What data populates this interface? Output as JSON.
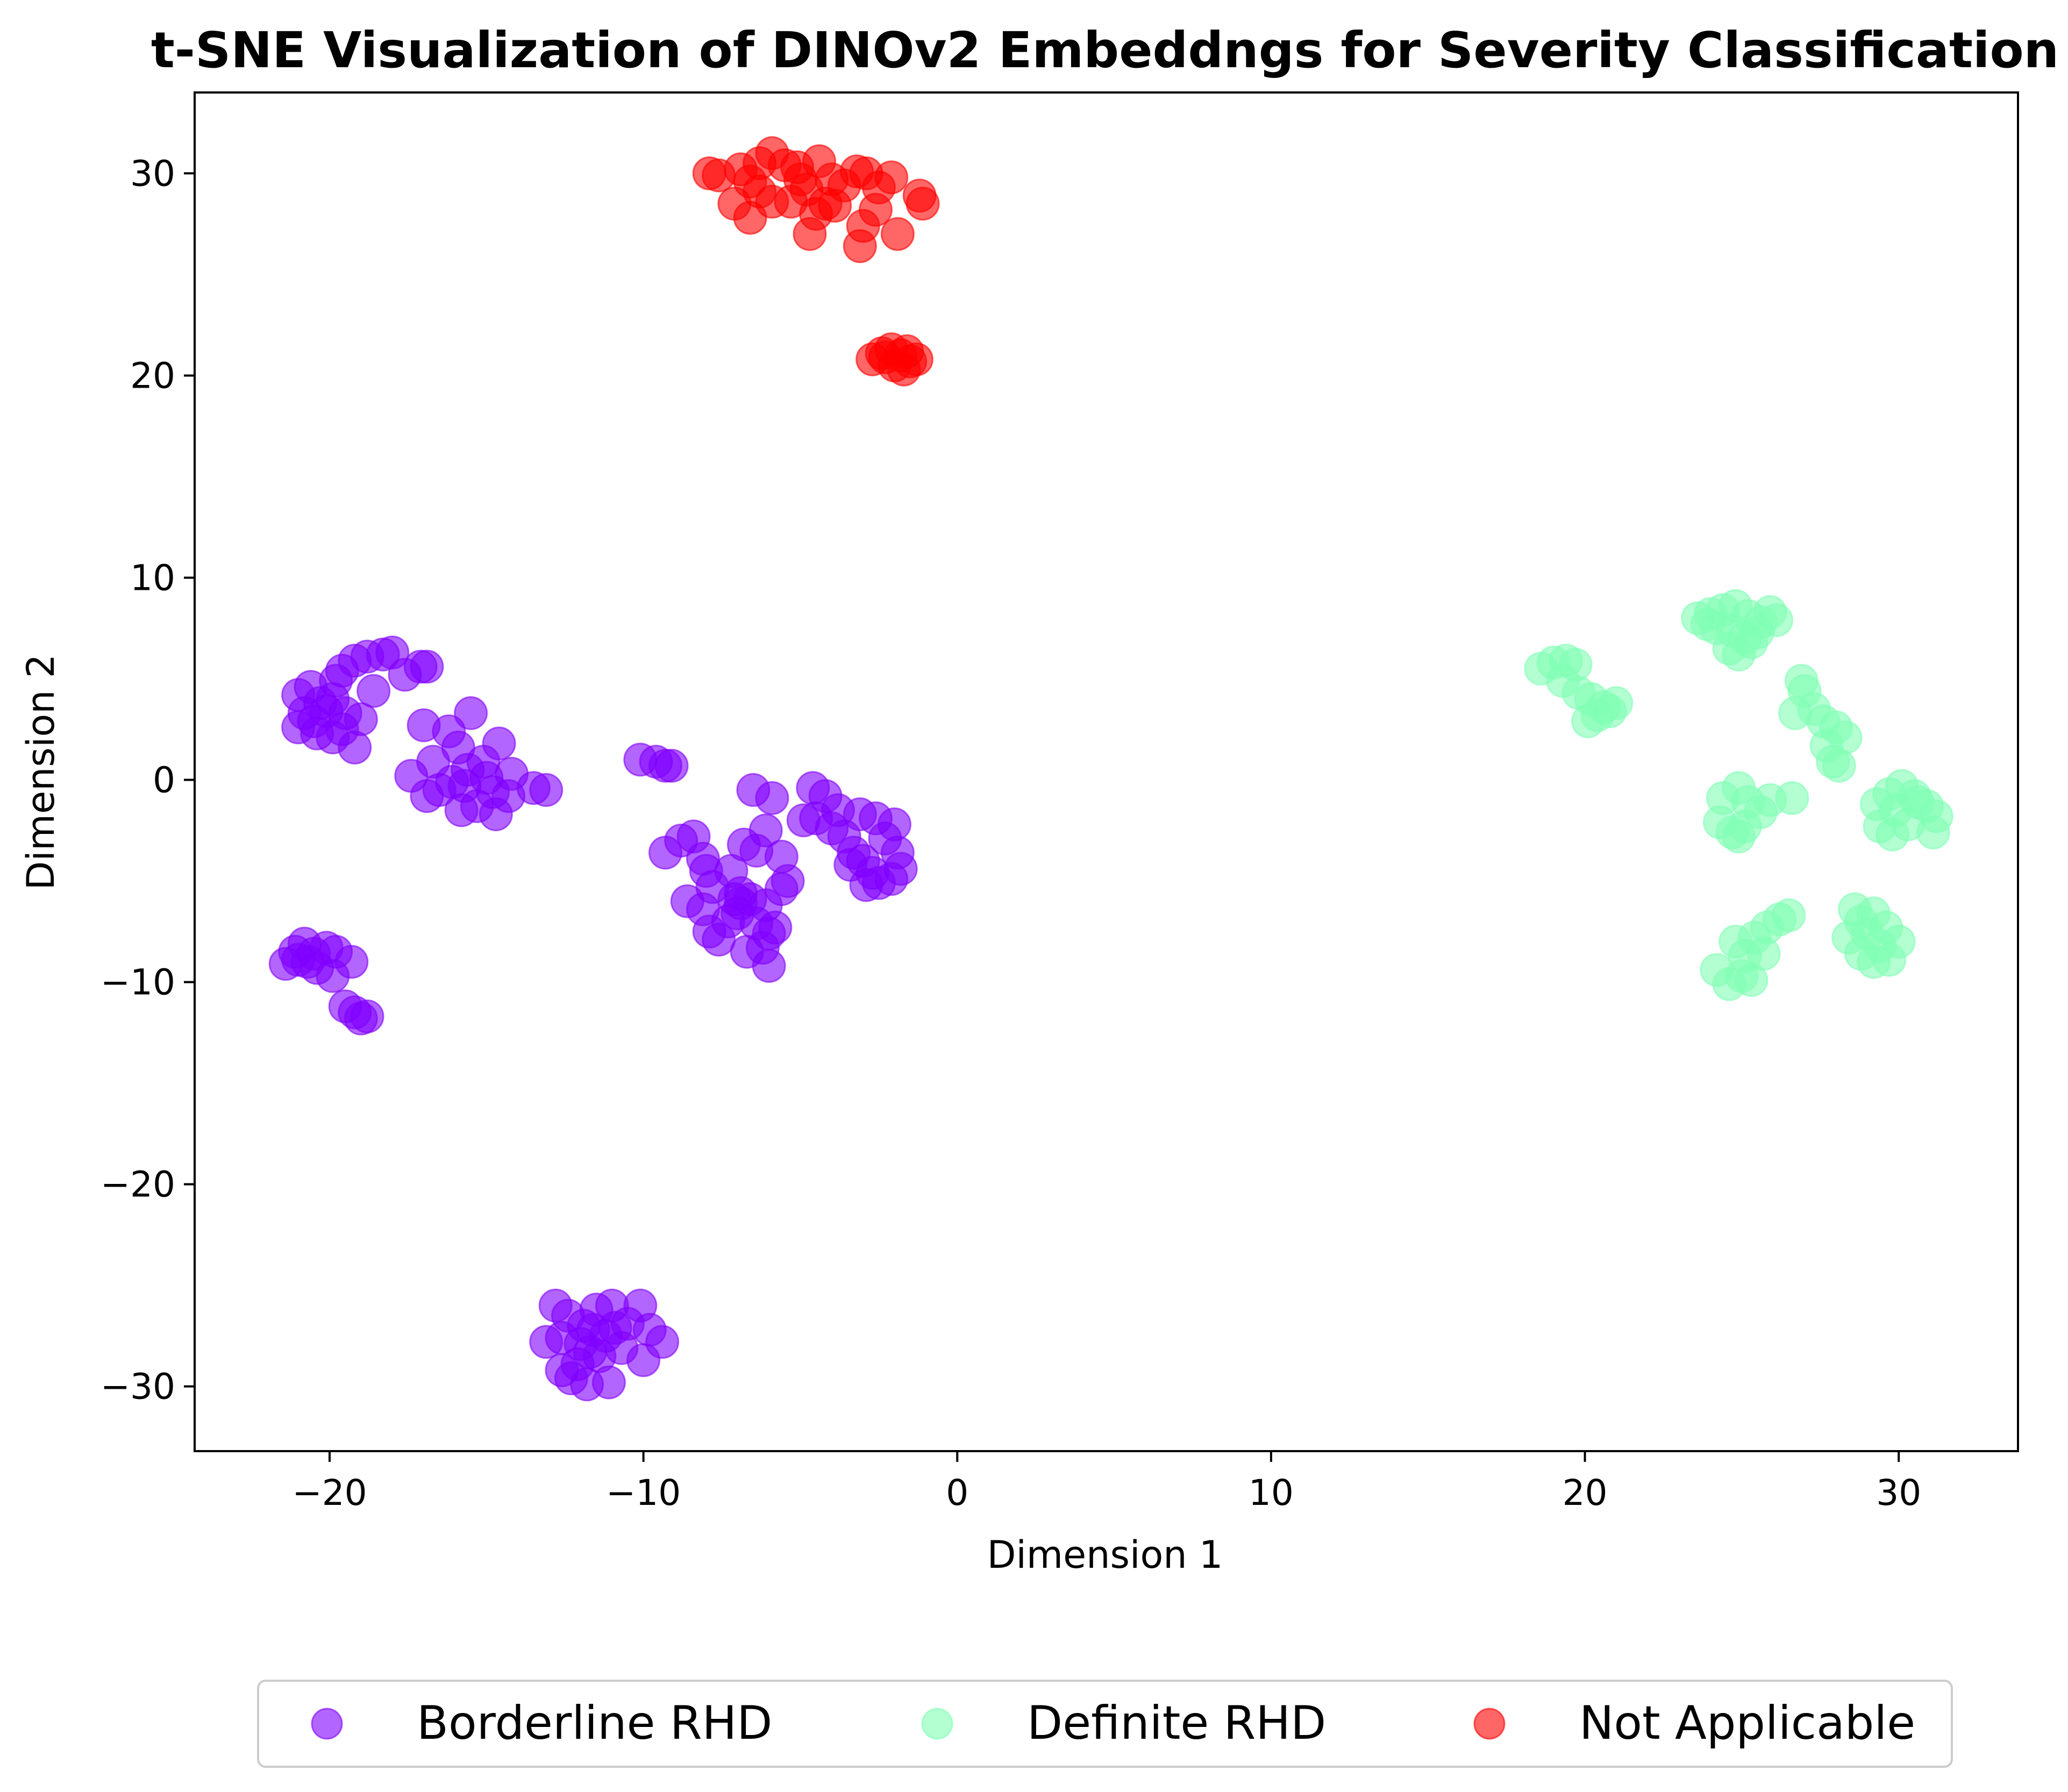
{
  "chart_data": {
    "type": "scatter",
    "title": "t-SNE Visualization of DINOv2 Embeddngs for Severity Classification",
    "xlabel": "Dimension 1",
    "ylabel": "Dimension 2",
    "xlim": [
      -24.3,
      33.8
    ],
    "ylim": [
      -33.2,
      34.0
    ],
    "xticks": [
      -20,
      -10,
      0,
      10,
      20,
      30
    ],
    "yticks": [
      -30,
      -20,
      -10,
      0,
      10,
      20,
      30
    ],
    "xtick_labels": [
      "−20",
      "−10",
      "0",
      "10",
      "20",
      "30"
    ],
    "ytick_labels": [
      "−30",
      "−20",
      "−10",
      "0",
      "10",
      "20",
      "30"
    ],
    "grid": false,
    "legend_position": "bottom-center",
    "series": [
      {
        "name": "Borderline RHD",
        "color": "#8000ff",
        "points": [
          [
            -21.0,
            4.2
          ],
          [
            -20.6,
            4.6
          ],
          [
            -20.3,
            3.8
          ],
          [
            -20.8,
            3.3
          ],
          [
            -21.0,
            2.6
          ],
          [
            -20.5,
            2.9
          ],
          [
            -20.1,
            3.4
          ],
          [
            -19.8,
            4.9
          ],
          [
            -19.6,
            5.4
          ],
          [
            -19.2,
            5.9
          ],
          [
            -18.8,
            6.1
          ],
          [
            -18.3,
            6.2
          ],
          [
            -18.0,
            6.3
          ],
          [
            -17.6,
            5.2
          ],
          [
            -17.1,
            5.6
          ],
          [
            -16.9,
            5.6
          ],
          [
            -18.6,
            4.4
          ],
          [
            -19.9,
            4.0
          ],
          [
            -19.5,
            3.3
          ],
          [
            -19.2,
            1.6
          ],
          [
            -19.9,
            2.1
          ],
          [
            -19.6,
            2.5
          ],
          [
            -19.0,
            3.0
          ],
          [
            -20.4,
            2.3
          ],
          [
            -17.0,
            2.7
          ],
          [
            -16.2,
            2.4
          ],
          [
            -15.5,
            3.3
          ],
          [
            -15.9,
            1.6
          ],
          [
            -16.7,
            0.9
          ],
          [
            -17.4,
            0.2
          ],
          [
            -16.9,
            -0.8
          ],
          [
            -16.5,
            -0.5
          ],
          [
            -16.1,
            -0.1
          ],
          [
            -15.6,
            0.5
          ],
          [
            -15.1,
            0.9
          ],
          [
            -14.6,
            1.8
          ],
          [
            -14.2,
            0.3
          ],
          [
            -14.8,
            -0.6
          ],
          [
            -15.3,
            -1.3
          ],
          [
            -15.8,
            -1.5
          ],
          [
            -14.7,
            -1.7
          ],
          [
            -14.3,
            -0.8
          ],
          [
            -13.5,
            -0.4
          ],
          [
            -13.1,
            -0.5
          ],
          [
            -15.0,
            0.1
          ],
          [
            -15.7,
            -0.3
          ],
          [
            -21.4,
            -9.1
          ],
          [
            -21.1,
            -8.5
          ],
          [
            -20.8,
            -8.1
          ],
          [
            -20.5,
            -8.6
          ],
          [
            -20.1,
            -8.3
          ],
          [
            -19.8,
            -8.5
          ],
          [
            -20.4,
            -9.3
          ],
          [
            -19.9,
            -9.7
          ],
          [
            -19.3,
            -9.0
          ],
          [
            -19.5,
            -11.2
          ],
          [
            -19.2,
            -11.5
          ],
          [
            -19.0,
            -11.8
          ],
          [
            -18.8,
            -11.7
          ],
          [
            -21.0,
            -8.9
          ],
          [
            -20.7,
            -9.0
          ],
          [
            -10.1,
            1.0
          ],
          [
            -9.6,
            0.9
          ],
          [
            -9.3,
            0.7
          ],
          [
            -9.1,
            0.7
          ],
          [
            -9.3,
            -3.6
          ],
          [
            -8.8,
            -3.0
          ],
          [
            -8.4,
            -2.8
          ],
          [
            -8.1,
            -3.9
          ],
          [
            -8.0,
            -4.5
          ],
          [
            -7.8,
            -5.3
          ],
          [
            -8.6,
            -6.0
          ],
          [
            -8.1,
            -6.4
          ],
          [
            -7.9,
            -7.5
          ],
          [
            -7.6,
            -7.9
          ],
          [
            -7.3,
            -7.0
          ],
          [
            -7.0,
            -6.6
          ],
          [
            -6.9,
            -5.6
          ],
          [
            -6.6,
            -5.9
          ],
          [
            -7.2,
            -4.5
          ],
          [
            -6.8,
            -3.2
          ],
          [
            -6.4,
            -3.5
          ],
          [
            -6.1,
            -2.5
          ],
          [
            -5.6,
            -3.8
          ],
          [
            -5.4,
            -5.0
          ],
          [
            -5.6,
            -5.4
          ],
          [
            -6.1,
            -6.2
          ],
          [
            -6.4,
            -7.1
          ],
          [
            -6.7,
            -8.5
          ],
          [
            -6.2,
            -8.3
          ],
          [
            -6.0,
            -9.2
          ],
          [
            -5.8,
            -7.3
          ],
          [
            -6.0,
            -7.6
          ],
          [
            -5.9,
            -0.9
          ],
          [
            -6.5,
            -0.5
          ],
          [
            -7.1,
            -5.9
          ],
          [
            -6.9,
            -6.1
          ],
          [
            -4.6,
            -0.4
          ],
          [
            -4.2,
            -0.8
          ],
          [
            -3.8,
            -1.5
          ],
          [
            -4.5,
            -1.9
          ],
          [
            -4.0,
            -2.4
          ],
          [
            -4.9,
            -2.0
          ],
          [
            -3.6,
            -2.8
          ],
          [
            -3.3,
            -3.6
          ],
          [
            -3.0,
            -4.0
          ],
          [
            -2.7,
            -4.6
          ],
          [
            -2.5,
            -5.1
          ],
          [
            -2.9,
            -5.2
          ],
          [
            -2.1,
            -4.9
          ],
          [
            -1.8,
            -4.4
          ],
          [
            -1.9,
            -3.6
          ],
          [
            -2.3,
            -2.9
          ],
          [
            -3.1,
            -1.7
          ],
          [
            -2.6,
            -1.9
          ],
          [
            -2.0,
            -2.2
          ],
          [
            -3.4,
            -4.2
          ],
          [
            -12.8,
            -26.0
          ],
          [
            -12.4,
            -26.5
          ],
          [
            -11.9,
            -27.0
          ],
          [
            -11.5,
            -26.2
          ],
          [
            -11.0,
            -26.0
          ],
          [
            -10.5,
            -26.9
          ],
          [
            -10.1,
            -26.0
          ],
          [
            -9.8,
            -27.2
          ],
          [
            -9.4,
            -27.8
          ],
          [
            -10.0,
            -28.7
          ],
          [
            -10.7,
            -28.1
          ],
          [
            -11.2,
            -27.5
          ],
          [
            -11.7,
            -28.3
          ],
          [
            -12.1,
            -28.9
          ],
          [
            -12.6,
            -29.2
          ],
          [
            -13.1,
            -27.8
          ],
          [
            -12.3,
            -29.6
          ],
          [
            -11.8,
            -29.9
          ],
          [
            -11.1,
            -29.8
          ],
          [
            -11.4,
            -28.5
          ],
          [
            -12.0,
            -27.9
          ],
          [
            -10.9,
            -27.1
          ],
          [
            -12.6,
            -27.6
          ],
          [
            -11.6,
            -27.2
          ]
        ]
      },
      {
        "name": "Definite RHD",
        "color": "#80ffb4",
        "points": [
          [
            23.6,
            8.0
          ],
          [
            24.0,
            8.2
          ],
          [
            24.4,
            8.4
          ],
          [
            24.8,
            8.6
          ],
          [
            25.2,
            8.1
          ],
          [
            25.6,
            7.8
          ],
          [
            25.9,
            8.3
          ],
          [
            26.1,
            7.9
          ],
          [
            24.2,
            7.5
          ],
          [
            24.7,
            7.4
          ],
          [
            25.1,
            7.0
          ],
          [
            25.5,
            7.3
          ],
          [
            24.9,
            6.2
          ],
          [
            24.6,
            6.5
          ],
          [
            25.3,
            6.8
          ],
          [
            23.9,
            7.7
          ],
          [
            18.6,
            5.5
          ],
          [
            19.0,
            5.8
          ],
          [
            19.4,
            5.9
          ],
          [
            19.7,
            5.7
          ],
          [
            19.3,
            4.9
          ],
          [
            19.8,
            4.3
          ],
          [
            20.2,
            4.0
          ],
          [
            20.6,
            3.6
          ],
          [
            21.0,
            3.8
          ],
          [
            20.4,
            3.2
          ],
          [
            20.1,
            2.9
          ],
          [
            20.8,
            3.4
          ],
          [
            26.9,
            4.9
          ],
          [
            27.0,
            4.4
          ],
          [
            27.3,
            3.5
          ],
          [
            26.7,
            3.3
          ],
          [
            27.6,
            2.9
          ],
          [
            28.0,
            2.6
          ],
          [
            28.3,
            2.1
          ],
          [
            27.7,
            1.7
          ],
          [
            27.9,
            0.9
          ],
          [
            28.1,
            0.7
          ],
          [
            24.4,
            -0.9
          ],
          [
            24.9,
            -0.4
          ],
          [
            25.2,
            -1.1
          ],
          [
            25.6,
            -1.6
          ],
          [
            25.1,
            -2.3
          ],
          [
            24.7,
            -2.6
          ],
          [
            24.3,
            -2.1
          ],
          [
            25.9,
            -1.0
          ],
          [
            26.6,
            -0.9
          ],
          [
            24.9,
            -2.8
          ],
          [
            29.3,
            -1.2
          ],
          [
            29.7,
            -0.7
          ],
          [
            30.1,
            -0.3
          ],
          [
            30.5,
            -0.8
          ],
          [
            30.9,
            -1.3
          ],
          [
            31.2,
            -1.8
          ],
          [
            31.1,
            -2.6
          ],
          [
            30.3,
            -2.2
          ],
          [
            29.8,
            -2.7
          ],
          [
            29.4,
            -2.3
          ],
          [
            29.9,
            -1.5
          ],
          [
            30.6,
            -1.1
          ],
          [
            24.2,
            -9.4
          ],
          [
            24.6,
            -10.1
          ],
          [
            25.0,
            -9.7
          ],
          [
            25.3,
            -9.9
          ],
          [
            25.1,
            -8.7
          ],
          [
            24.8,
            -8.0
          ],
          [
            25.4,
            -7.8
          ],
          [
            25.8,
            -7.3
          ],
          [
            26.2,
            -6.9
          ],
          [
            26.5,
            -6.7
          ],
          [
            25.7,
            -8.6
          ],
          [
            28.4,
            -7.8
          ],
          [
            28.8,
            -7.0
          ],
          [
            29.2,
            -6.6
          ],
          [
            29.6,
            -7.3
          ],
          [
            30.0,
            -8.0
          ],
          [
            29.7,
            -8.9
          ],
          [
            29.2,
            -9.0
          ],
          [
            28.8,
            -8.6
          ],
          [
            29.0,
            -7.6
          ],
          [
            28.6,
            -6.4
          ],
          [
            29.4,
            -8.2
          ]
        ]
      },
      {
        "name": "Not Applicable",
        "color": "#ff0000",
        "points": [
          [
            -7.9,
            30.0
          ],
          [
            -7.6,
            29.9
          ],
          [
            -6.9,
            30.2
          ],
          [
            -6.6,
            29.6
          ],
          [
            -6.3,
            29.1
          ],
          [
            -5.9,
            31.0
          ],
          [
            -5.5,
            30.4
          ],
          [
            -5.1,
            30.3
          ],
          [
            -4.8,
            29.2
          ],
          [
            -4.4,
            30.6
          ],
          [
            -4.0,
            29.7
          ],
          [
            -3.6,
            29.4
          ],
          [
            -3.2,
            30.1
          ],
          [
            -2.9,
            30.0
          ],
          [
            -2.5,
            29.3
          ],
          [
            -2.1,
            29.8
          ],
          [
            -1.2,
            28.9
          ],
          [
            -1.1,
            28.5
          ],
          [
            -2.6,
            28.2
          ],
          [
            -3.0,
            27.4
          ],
          [
            -3.1,
            26.4
          ],
          [
            -1.9,
            27.0
          ],
          [
            -4.5,
            28.0
          ],
          [
            -4.7,
            27.0
          ],
          [
            -5.3,
            28.6
          ],
          [
            -5.9,
            28.6
          ],
          [
            -6.6,
            27.8
          ],
          [
            -7.1,
            28.5
          ],
          [
            -3.9,
            28.4
          ],
          [
            -5.0,
            29.7
          ],
          [
            -6.3,
            30.5
          ],
          [
            -4.2,
            28.5
          ],
          [
            -2.7,
            20.8
          ],
          [
            -2.4,
            21.1
          ],
          [
            -2.1,
            21.3
          ],
          [
            -1.8,
            21.0
          ],
          [
            -1.5,
            20.7
          ],
          [
            -1.3,
            20.8
          ],
          [
            -2.0,
            20.5
          ],
          [
            -1.7,
            20.3
          ],
          [
            -2.3,
            20.9
          ],
          [
            -1.6,
            21.2
          ]
        ]
      }
    ]
  }
}
